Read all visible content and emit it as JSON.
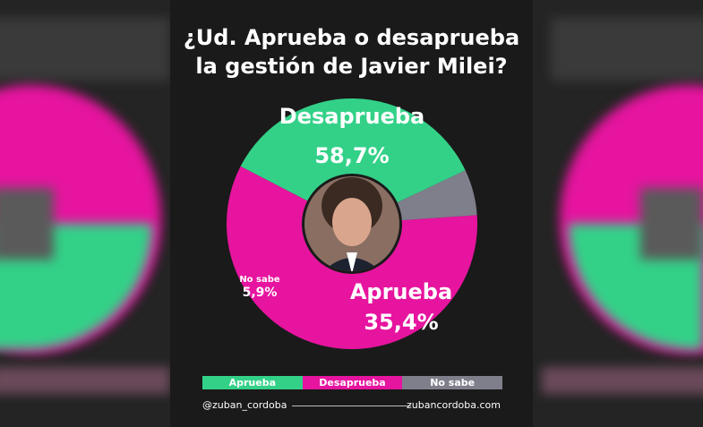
{
  "title_lines": [
    "¿Ud. Aprueba o desaprueba",
    "la gestión de Javier Milei?"
  ],
  "chart_data": {
    "type": "pie",
    "donut": true,
    "slices": [
      {
        "label": "Desaprueba",
        "value_text": "58,7%",
        "value": 58.7,
        "color": "#e6149f"
      },
      {
        "label": "Aprueba",
        "value_text": "35,4%",
        "value": 35.4,
        "color": "#33d188"
      },
      {
        "label": "No sabe",
        "value_text": "5,9%",
        "value": 5.9,
        "color": "#7f7f8c"
      }
    ],
    "center_image": "portrait-photo"
  },
  "legend": [
    {
      "label": "Aprueba",
      "color": "#33d188"
    },
    {
      "label": "Desaprueba",
      "color": "#e6149f"
    },
    {
      "label": "No sabe",
      "color": "#7f7f8c"
    }
  ],
  "footer": {
    "handle": "@zuban_cordoba",
    "website": "zubancordoba.com"
  }
}
